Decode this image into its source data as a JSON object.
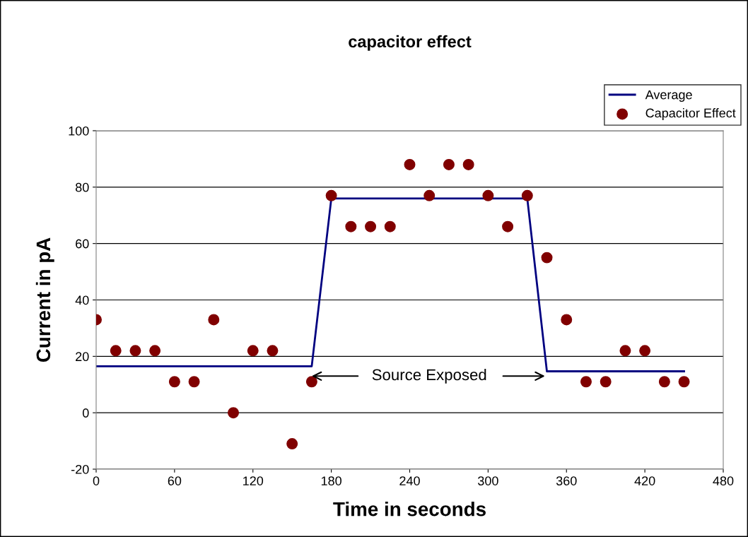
{
  "chart_data": {
    "type": "scatter",
    "title": "capacitor effect",
    "xlabel": "Time in seconds",
    "ylabel": "Current in pA",
    "xlim": [
      0,
      480
    ],
    "xticks": [
      0,
      60,
      120,
      180,
      240,
      300,
      360,
      420,
      480
    ],
    "ylim": [
      -20,
      100
    ],
    "yticks": [
      -20,
      0,
      20,
      40,
      60,
      80,
      100
    ],
    "grid": "y",
    "legend": "top right",
    "series": [
      {
        "name": "Average",
        "type": "line",
        "marker": "none",
        "color": "#000080",
        "x": [
          0,
          165,
          180,
          330,
          345,
          450
        ],
        "values": [
          16.5,
          16.5,
          76,
          76,
          14.7,
          14.7
        ]
      },
      {
        "name": "Capacitor Effect",
        "marker": "circle",
        "color": "#800000",
        "x": [
          0,
          15,
          30,
          45,
          60,
          75,
          90,
          105,
          120,
          135,
          150,
          165,
          180,
          195,
          210,
          225,
          240,
          255,
          270,
          285,
          300,
          315,
          330,
          345,
          360,
          375,
          390,
          405,
          420,
          435,
          450
        ],
        "values": [
          33,
          22,
          22,
          22,
          11,
          11,
          33,
          0,
          22,
          22,
          -11,
          11,
          77,
          66,
          66,
          66,
          88,
          77,
          88,
          88,
          77,
          66,
          77,
          55,
          33,
          11,
          11,
          22,
          22,
          11,
          11
        ]
      }
    ],
    "annotations": [
      {
        "text": "Source Exposed",
        "x": 165,
        "y": 13
      }
    ]
  }
}
